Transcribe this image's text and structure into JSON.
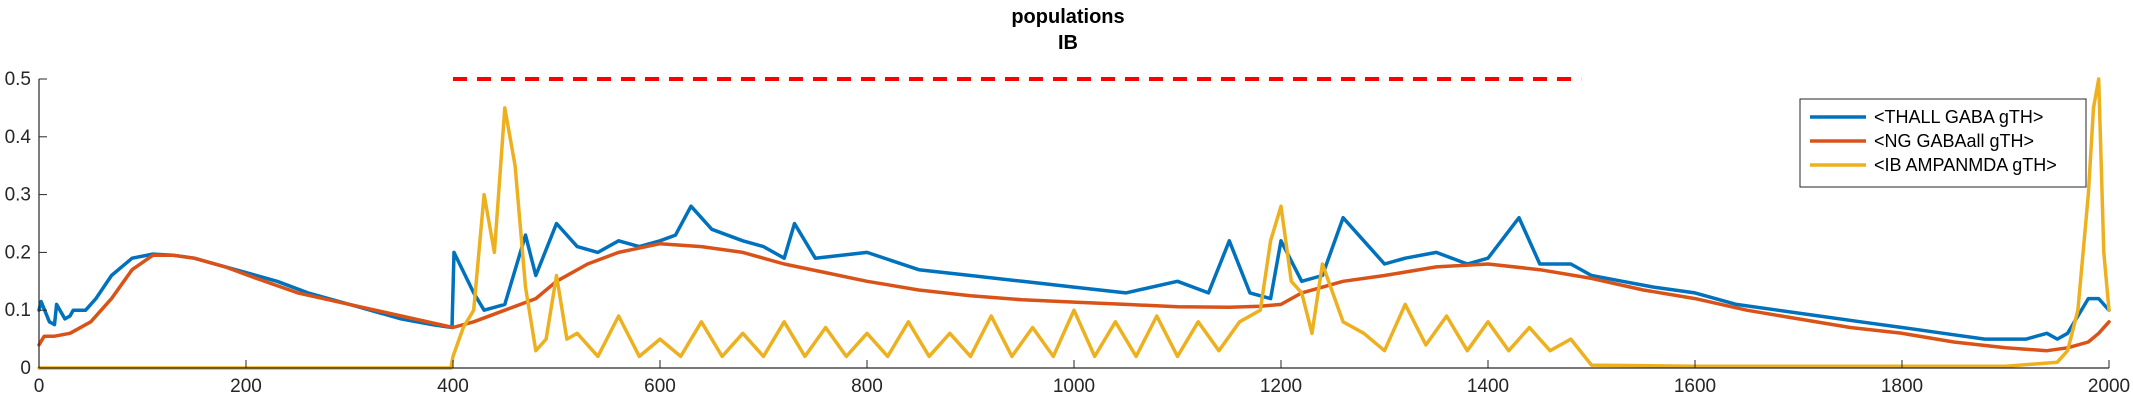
{
  "chart_data": {
    "type": "line",
    "title": "populations",
    "subtitle": "IB",
    "xlabel": "",
    "ylabel": "",
    "xlim": [
      0,
      2000
    ],
    "ylim": [
      0,
      0.5
    ],
    "x_ticks": [
      0,
      200,
      400,
      600,
      800,
      1000,
      1200,
      1400,
      1600,
      1800,
      2000
    ],
    "x_tick_labels": [
      "0",
      "200",
      "400",
      "600",
      "800",
      "1000",
      "1200",
      "1400",
      "1600",
      "1800",
      "2000"
    ],
    "y_ticks": [
      0,
      0.1,
      0.2,
      0.3,
      0.4,
      0.5
    ],
    "y_tick_labels": [
      "0",
      "0.1",
      "0.2",
      "0.3",
      "0.4",
      "0.5"
    ],
    "grid": false,
    "legend_position": "top-right",
    "stimulus_marker": {
      "style": "dashed",
      "color": "#ff0000",
      "x_start": 400,
      "x_end": 1490,
      "y": 0.5
    },
    "series": [
      {
        "name": "<THALL GABA gTH>",
        "color": "#0072bd",
        "x": [
          0,
          2,
          10,
          15,
          17,
          25,
          30,
          33,
          45,
          55,
          70,
          90,
          110,
          130,
          150,
          170,
          200,
          230,
          260,
          290,
          320,
          350,
          380,
          399,
          401,
          420,
          430,
          450,
          470,
          480,
          500,
          520,
          540,
          560,
          580,
          600,
          615,
          630,
          650,
          680,
          700,
          720,
          730,
          750,
          800,
          850,
          900,
          950,
          1000,
          1050,
          1100,
          1130,
          1150,
          1170,
          1190,
          1200,
          1220,
          1240,
          1260,
          1290,
          1300,
          1320,
          1350,
          1380,
          1400,
          1430,
          1450,
          1480,
          1500,
          1530,
          1560,
          1600,
          1640,
          1680,
          1720,
          1760,
          1800,
          1840,
          1880,
          1920,
          1940,
          1950,
          1960,
          1970,
          1980,
          1990,
          2000
        ],
        "y": [
          0.1,
          0.115,
          0.08,
          0.075,
          0.11,
          0.085,
          0.09,
          0.1,
          0.1,
          0.12,
          0.16,
          0.19,
          0.197,
          0.195,
          0.19,
          0.18,
          0.165,
          0.15,
          0.13,
          0.115,
          0.1,
          0.085,
          0.075,
          0.07,
          0.2,
          0.13,
          0.1,
          0.11,
          0.23,
          0.16,
          0.25,
          0.21,
          0.2,
          0.22,
          0.21,
          0.22,
          0.23,
          0.28,
          0.24,
          0.22,
          0.21,
          0.19,
          0.25,
          0.19,
          0.2,
          0.17,
          0.16,
          0.15,
          0.14,
          0.13,
          0.15,
          0.13,
          0.22,
          0.13,
          0.12,
          0.22,
          0.15,
          0.16,
          0.26,
          0.2,
          0.18,
          0.19,
          0.2,
          0.18,
          0.19,
          0.26,
          0.18,
          0.18,
          0.16,
          0.15,
          0.14,
          0.13,
          0.11,
          0.1,
          0.09,
          0.08,
          0.07,
          0.06,
          0.05,
          0.05,
          0.06,
          0.05,
          0.06,
          0.09,
          0.12,
          0.12,
          0.1
        ]
      },
      {
        "name": "<NG GABAall gTH>",
        "color": "#d95319",
        "x": [
          0,
          5,
          15,
          30,
          50,
          70,
          90,
          110,
          130,
          150,
          180,
          210,
          250,
          300,
          350,
          400,
          420,
          450,
          480,
          500,
          530,
          560,
          600,
          640,
          680,
          720,
          760,
          800,
          850,
          900,
          950,
          1000,
          1050,
          1100,
          1150,
          1180,
          1200,
          1220,
          1260,
          1300,
          1350,
          1400,
          1450,
          1500,
          1550,
          1600,
          1650,
          1700,
          1750,
          1800,
          1850,
          1900,
          1940,
          1960,
          1980,
          1990,
          2000
        ],
        "y": [
          0.04,
          0.055,
          0.055,
          0.06,
          0.08,
          0.12,
          0.17,
          0.195,
          0.195,
          0.19,
          0.175,
          0.155,
          0.13,
          0.11,
          0.09,
          0.07,
          0.08,
          0.1,
          0.12,
          0.15,
          0.18,
          0.2,
          0.215,
          0.21,
          0.2,
          0.18,
          0.165,
          0.15,
          0.135,
          0.125,
          0.118,
          0.114,
          0.11,
          0.106,
          0.105,
          0.107,
          0.11,
          0.13,
          0.15,
          0.16,
          0.175,
          0.18,
          0.17,
          0.155,
          0.135,
          0.12,
          0.1,
          0.085,
          0.07,
          0.06,
          0.045,
          0.035,
          0.03,
          0.035,
          0.045,
          0.06,
          0.08
        ]
      },
      {
        "name": "<IB AMPANMDA gTH>",
        "color": "#edb120",
        "x": [
          0,
          398,
          400,
          410,
          420,
          430,
          440,
          450,
          460,
          470,
          480,
          490,
          500,
          510,
          520,
          540,
          560,
          580,
          600,
          620,
          640,
          660,
          680,
          700,
          720,
          740,
          760,
          780,
          800,
          820,
          840,
          860,
          880,
          900,
          920,
          940,
          960,
          980,
          1000,
          1020,
          1040,
          1060,
          1080,
          1100,
          1120,
          1140,
          1160,
          1180,
          1190,
          1200,
          1210,
          1220,
          1230,
          1240,
          1260,
          1280,
          1300,
          1320,
          1340,
          1360,
          1380,
          1400,
          1420,
          1440,
          1460,
          1480,
          1500,
          1600,
          1700,
          1800,
          1900,
          1950,
          1960,
          1970,
          1980,
          1985,
          1990,
          1995,
          2000
        ],
        "y": [
          0,
          0,
          0.02,
          0.07,
          0.1,
          0.3,
          0.2,
          0.45,
          0.35,
          0.14,
          0.03,
          0.05,
          0.16,
          0.05,
          0.06,
          0.02,
          0.09,
          0.02,
          0.05,
          0.02,
          0.08,
          0.02,
          0.06,
          0.02,
          0.08,
          0.02,
          0.07,
          0.02,
          0.06,
          0.02,
          0.08,
          0.02,
          0.06,
          0.02,
          0.09,
          0.02,
          0.07,
          0.02,
          0.1,
          0.02,
          0.08,
          0.02,
          0.09,
          0.02,
          0.08,
          0.03,
          0.08,
          0.1,
          0.22,
          0.28,
          0.15,
          0.13,
          0.06,
          0.18,
          0.08,
          0.06,
          0.03,
          0.11,
          0.04,
          0.09,
          0.03,
          0.08,
          0.03,
          0.07,
          0.03,
          0.05,
          0.005,
          0.003,
          0.003,
          0.003,
          0.003,
          0.01,
          0.03,
          0.1,
          0.3,
          0.45,
          0.5,
          0.2,
          0.1
        ]
      }
    ]
  }
}
